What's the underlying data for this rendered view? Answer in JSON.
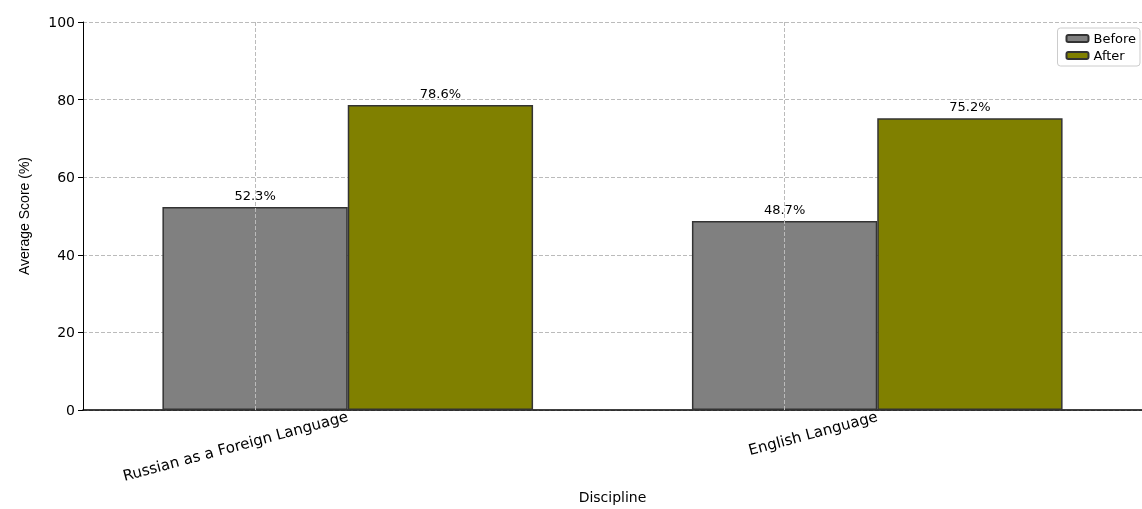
{
  "chart_data": {
    "type": "bar",
    "xlabel": "Discipline",
    "ylabel": "Average Score (%)",
    "categories": [
      "Russian as a Foreign Language",
      "English Language"
    ],
    "series": [
      {
        "name": "Before",
        "color": "#808080",
        "values": [
          52.3,
          48.7
        ],
        "value_labels": [
          "52.3%",
          "48.7%"
        ]
      },
      {
        "name": "After",
        "color": "#808000",
        "values": [
          78.6,
          75.2
        ],
        "value_labels": [
          "78.6%",
          "75.2%"
        ]
      }
    ],
    "ylim": [
      0,
      100
    ],
    "yticks": [
      0,
      20,
      40,
      60,
      80,
      100
    ],
    "grid": true,
    "legend": "top right"
  }
}
